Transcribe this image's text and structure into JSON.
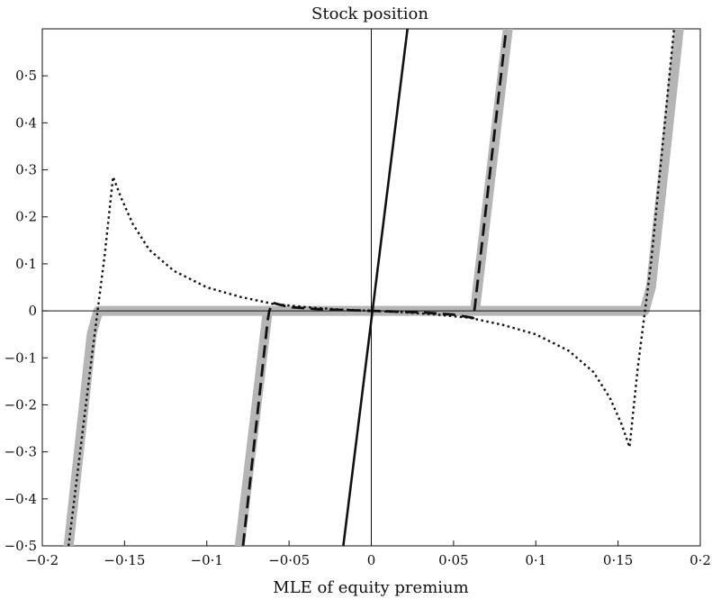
{
  "chart_data": {
    "type": "line",
    "title": "Stock position",
    "xlabel": "MLE of equity premium",
    "ylabel": "",
    "xlim": [
      -0.2,
      0.2
    ],
    "ylim": [
      -0.5,
      0.6
    ],
    "x_ticks": [
      -0.2,
      -0.15,
      -0.1,
      -0.05,
      0,
      0.05,
      0.1,
      0.15,
      0.2
    ],
    "x_tick_labels": [
      "−0·2",
      "−0·15",
      "−0·1",
      "−0·05",
      "0",
      "0·05",
      "0·1",
      "0·15",
      "0·2"
    ],
    "y_ticks": [
      -0.5,
      -0.4,
      -0.3,
      -0.2,
      -0.1,
      0,
      0.1,
      0.2,
      0.3,
      0.4,
      0.5
    ],
    "y_tick_labels": [
      "−0·5",
      "−0·4",
      "−0·3",
      "−0·2",
      "−0·1",
      "0",
      "0·1",
      "0·2",
      "0·3",
      "0·4",
      "0·5"
    ],
    "grid": false,
    "series": [
      {
        "style": "solid",
        "color": "#111111",
        "points": [
          [
            -0.017,
            -0.5
          ],
          [
            0.022,
            0.6
          ]
        ]
      },
      {
        "style": "thick-gray",
        "color": "#b5b5b5",
        "points": [
          [
            -0.184,
            -0.5
          ],
          [
            -0.17,
            -0.05
          ],
          [
            -0.166,
            0
          ],
          [
            -0.063,
            0
          ],
          [
            -0.08,
            -0.5
          ]
        ]
      },
      {
        "style": "thick-gray",
        "color": "#b5b5b5",
        "points": [
          [
            -0.063,
            0
          ],
          [
            0.063,
            0
          ],
          [
            0.083,
            0.6
          ]
        ]
      },
      {
        "style": "thick-gray",
        "color": "#b5b5b5",
        "points": [
          [
            0.063,
            0
          ],
          [
            0.166,
            0
          ],
          [
            0.17,
            0.05
          ],
          [
            0.187,
            0.6
          ]
        ]
      },
      {
        "style": "dashed",
        "color": "#111111",
        "points": [
          [
            -0.078,
            -0.5
          ],
          [
            -0.063,
            -0.02
          ],
          [
            -0.062,
            0
          ],
          [
            -0.06,
            0.017
          ],
          [
            -0.05,
            0.008
          ],
          [
            -0.03,
            0.003
          ],
          [
            0,
            0
          ],
          [
            0.03,
            -0.003
          ],
          [
            0.05,
            -0.008
          ],
          [
            0.062,
            -0.015
          ],
          [
            0.063,
            0.01
          ],
          [
            0.082,
            0.6
          ]
        ]
      },
      {
        "style": "dotted",
        "color": "#111111",
        "points": [
          [
            -0.184,
            -0.5
          ],
          [
            -0.17,
            -0.1
          ],
          [
            -0.162,
            0.12
          ],
          [
            -0.157,
            0.285
          ],
          [
            -0.152,
            0.24
          ],
          [
            -0.145,
            0.185
          ],
          [
            -0.135,
            0.13
          ],
          [
            -0.12,
            0.085
          ],
          [
            -0.1,
            0.05
          ],
          [
            -0.08,
            0.03
          ],
          [
            -0.06,
            0.015
          ],
          [
            -0.04,
            0.008
          ],
          [
            -0.02,
            0.003
          ],
          [
            0,
            0
          ],
          [
            0.02,
            -0.003
          ],
          [
            0.04,
            -0.008
          ],
          [
            0.06,
            -0.015
          ],
          [
            0.08,
            -0.03
          ],
          [
            0.1,
            -0.05
          ],
          [
            0.12,
            -0.085
          ],
          [
            0.135,
            -0.13
          ],
          [
            0.145,
            -0.185
          ],
          [
            0.152,
            -0.24
          ],
          [
            0.157,
            -0.29
          ],
          [
            0.162,
            -0.12
          ],
          [
            0.17,
            0.1
          ],
          [
            0.184,
            0.6
          ]
        ]
      }
    ]
  }
}
